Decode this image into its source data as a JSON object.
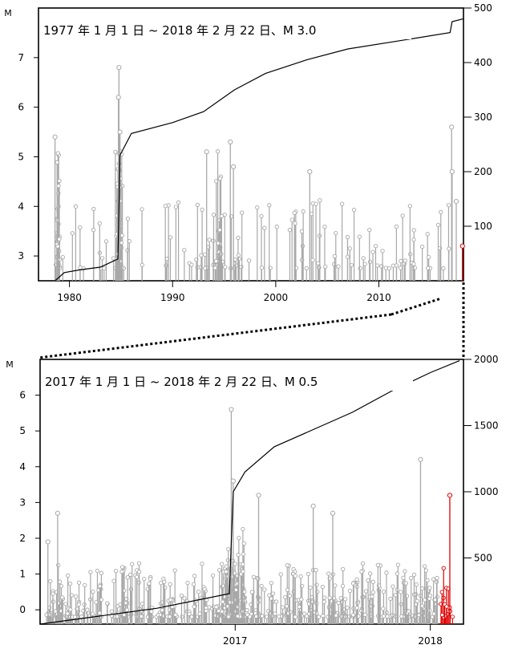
{
  "chart_data": [
    {
      "type": "scatter",
      "title": "1977 年 1 月 1 日 ~ 2018 年 2 月 22 日、M  3.0",
      "ylabel": "M",
      "xlim": [
        1977,
        2018.2
      ],
      "ylim": [
        2.5,
        8.0
      ],
      "y2lim": [
        0,
        500
      ],
      "x_ticks": [
        1980,
        1990,
        2000,
        2010
      ],
      "y_ticks": [
        3,
        4,
        5,
        6,
        7
      ],
      "y2_ticks": [
        100,
        200,
        300,
        400,
        500
      ],
      "colors": {
        "history": "#a8a8a8",
        "recent": "#e00000",
        "cumulative": "#000000",
        "frame": "#000000"
      },
      "major_events": [
        {
          "x": 1978.6,
          "y": 5.4
        },
        {
          "x": 1984.8,
          "y": 6.8
        },
        {
          "x": 1984.75,
          "y": 6.2
        },
        {
          "x": 1984.9,
          "y": 5.5
        },
        {
          "x": 1993.3,
          "y": 5.1
        },
        {
          "x": 1995.6,
          "y": 5.3
        },
        {
          "x": 1995.9,
          "y": 4.8
        },
        {
          "x": 2003.3,
          "y": 4.7
        },
        {
          "x": 2017.05,
          "y": 5.6
        },
        {
          "x": 2017.1,
          "y": 4.7
        },
        {
          "x": 2017.5,
          "y": 4.1
        },
        {
          "x": 2018.1,
          "y": 3.2
        }
      ],
      "cumulative": [
        {
          "x": 1978.6,
          "y": 0
        },
        {
          "x": 1979.5,
          "y": 15
        },
        {
          "x": 1981,
          "y": 20
        },
        {
          "x": 1983,
          "y": 25
        },
        {
          "x": 1984.7,
          "y": 40
        },
        {
          "x": 1984.9,
          "y": 230
        },
        {
          "x": 1986,
          "y": 270
        },
        {
          "x": 1990,
          "y": 290
        },
        {
          "x": 1993,
          "y": 310
        },
        {
          "x": 1996,
          "y": 350
        },
        {
          "x": 1999,
          "y": 380
        },
        {
          "x": 2003,
          "y": 405
        },
        {
          "x": 2007,
          "y": 425
        },
        {
          "x": 2012,
          "y": 440
        },
        {
          "x": 2016.9,
          "y": 455
        },
        {
          "x": 2017.1,
          "y": 475
        },
        {
          "x": 2018.15,
          "y": 480
        }
      ]
    },
    {
      "type": "scatter",
      "title": "2017 年 1 月 1 日 ~ 2018 年 2 月 22 日、M   0.5",
      "ylabel": "M",
      "xlim": [
        2016.0,
        2018.17
      ],
      "ylim": [
        -0.4,
        7.0
      ],
      "y2lim": [
        0,
        2000
      ],
      "x_ticks": [
        2017,
        2018
      ],
      "y_ticks": [
        0,
        1,
        2,
        3,
        4,
        5,
        6
      ],
      "y2_ticks": [
        500,
        1000,
        1500,
        2000
      ],
      "colors": {
        "history": "#a8a8a8",
        "recent": "#e00000",
        "cumulative": "#000000",
        "frame": "#000000"
      },
      "major_events": [
        {
          "x": 2016.98,
          "y": 5.6
        },
        {
          "x": 2016.99,
          "y": 3.6
        },
        {
          "x": 2016.04,
          "y": 1.9
        },
        {
          "x": 2016.09,
          "y": 2.7
        },
        {
          "x": 2017.12,
          "y": 3.2
        },
        {
          "x": 2017.4,
          "y": 2.9
        },
        {
          "x": 2017.5,
          "y": 2.7
        },
        {
          "x": 2017.95,
          "y": 4.2
        },
        {
          "x": 2018.1,
          "y": 3.2
        }
      ],
      "cumulative": [
        {
          "x": 2016.0,
          "y": 0
        },
        {
          "x": 2016.3,
          "y": 60
        },
        {
          "x": 2016.6,
          "y": 120
        },
        {
          "x": 2016.97,
          "y": 230
        },
        {
          "x": 2016.99,
          "y": 1000
        },
        {
          "x": 2017.05,
          "y": 1150
        },
        {
          "x": 2017.2,
          "y": 1340
        },
        {
          "x": 2017.4,
          "y": 1470
        },
        {
          "x": 2017.6,
          "y": 1600
        },
        {
          "x": 2017.8,
          "y": 1760
        },
        {
          "x": 2018.0,
          "y": 1900
        },
        {
          "x": 2018.15,
          "y": 1990
        }
      ]
    }
  ]
}
